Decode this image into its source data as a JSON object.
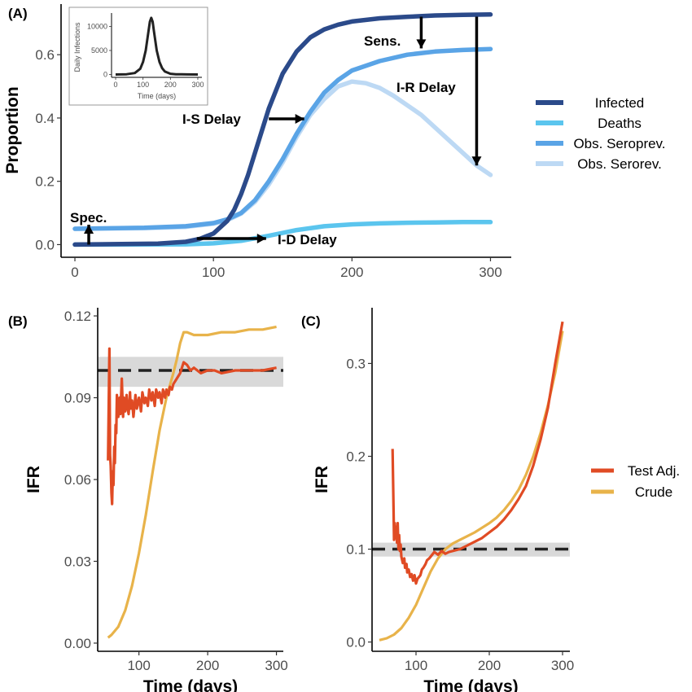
{
  "colors": {
    "infected": "#2b4a8a",
    "deaths": "#5bc5ee",
    "seroprev": "#5aa4e6",
    "serorev": "#bdd9f4",
    "test_adj": "#e04b24",
    "crude": "#e8b34a",
    "truth_line": "#222222",
    "band": "#d9d9d9"
  },
  "chart_data": [
    {
      "panel": "(A)",
      "type": "line",
      "ylabel": "Proportion",
      "xlabel": "",
      "xlim": [
        -10,
        315
      ],
      "ylim": [
        -0.04,
        0.76
      ],
      "xticks": [
        0,
        100,
        200,
        300
      ],
      "yticks": [
        0.0,
        0.2,
        0.4,
        0.6
      ],
      "ytick_labels": [
        "0.0",
        "0.2",
        "0.4",
        "0.6"
      ],
      "legend_position": "right",
      "series": [
        {
          "name": "Infected",
          "key": "infected",
          "x": [
            0,
            60,
            80,
            90,
            100,
            110,
            115,
            120,
            125,
            130,
            135,
            140,
            150,
            160,
            170,
            180,
            190,
            200,
            220,
            240,
            260,
            280,
            300
          ],
          "y": [
            0.0,
            0.003,
            0.009,
            0.018,
            0.035,
            0.075,
            0.11,
            0.16,
            0.22,
            0.29,
            0.36,
            0.43,
            0.54,
            0.61,
            0.655,
            0.68,
            0.695,
            0.705,
            0.715,
            0.72,
            0.724,
            0.726,
            0.727
          ]
        },
        {
          "name": "Deaths",
          "key": "deaths",
          "x": [
            0,
            80,
            100,
            120,
            140,
            160,
            180,
            200,
            220,
            240,
            260,
            280,
            300
          ],
          "y": [
            0.0,
            0.001,
            0.004,
            0.012,
            0.028,
            0.046,
            0.058,
            0.064,
            0.067,
            0.069,
            0.07,
            0.071,
            0.071
          ]
        },
        {
          "name": "Obs. Seroprev.",
          "key": "seroprev",
          "x": [
            0,
            50,
            80,
            100,
            110,
            120,
            130,
            140,
            150,
            160,
            170,
            180,
            190,
            200,
            220,
            240,
            260,
            280,
            300
          ],
          "y": [
            0.05,
            0.053,
            0.058,
            0.068,
            0.08,
            0.1,
            0.14,
            0.2,
            0.27,
            0.35,
            0.42,
            0.48,
            0.52,
            0.55,
            0.58,
            0.6,
            0.61,
            0.615,
            0.618
          ]
        },
        {
          "name": "Obs. Serorev.",
          "key": "serorev",
          "x": [
            0,
            50,
            80,
            100,
            110,
            120,
            130,
            140,
            150,
            160,
            170,
            180,
            190,
            200,
            210,
            220,
            230,
            240,
            250,
            260,
            270,
            280,
            290,
            300
          ],
          "y": [
            0.05,
            0.052,
            0.056,
            0.066,
            0.077,
            0.098,
            0.135,
            0.19,
            0.26,
            0.34,
            0.41,
            0.46,
            0.5,
            0.515,
            0.51,
            0.495,
            0.47,
            0.44,
            0.41,
            0.37,
            0.33,
            0.29,
            0.25,
            0.22
          ]
        }
      ],
      "annotations": [
        {
          "text": "Spec.",
          "arrow": {
            "x": 10,
            "y_from": 0.0,
            "y_to": 0.05,
            "dir": "up"
          }
        },
        {
          "text": "I-D Delay",
          "arrow": {
            "y": 0.02,
            "x_from": 88,
            "x_to": 138,
            "dir": "right"
          }
        },
        {
          "text": "I-S Delay",
          "arrow": {
            "y": 0.4,
            "x_from": 140,
            "x_to": 162,
            "dir": "right"
          }
        },
        {
          "text": "Sens.",
          "arrow": {
            "x": 250,
            "y_from": 0.72,
            "y_to": 0.62,
            "dir": "down"
          }
        },
        {
          "text": "I-R Delay",
          "arrow": {
            "x": 290,
            "y_from": 0.72,
            "y_to": 0.25,
            "dir": "down"
          }
        }
      ],
      "inset": {
        "type": "line",
        "xlabel": "Time (days)",
        "ylabel": "Daily Infections",
        "xticks": [
          0,
          100,
          200,
          300
        ],
        "yticks": [
          0,
          5000,
          10000
        ],
        "xlim": [
          -15,
          315
        ],
        "ylim": [
          -600,
          12800
        ],
        "x": [
          0,
          40,
          70,
          90,
          100,
          110,
          120,
          125,
          130,
          135,
          140,
          150,
          160,
          170,
          180,
          200,
          220,
          240,
          260,
          300
        ],
        "y": [
          0,
          50,
          300,
          1200,
          2600,
          5000,
          9000,
          11000,
          11800,
          11000,
          9000,
          5000,
          2600,
          1300,
          600,
          150,
          50,
          20,
          5,
          0
        ]
      }
    },
    {
      "panel": "(B)",
      "type": "line",
      "xlabel": "Time (days)",
      "ylabel": "IFR",
      "xlim": [
        40,
        310
      ],
      "ylim": [
        -0.003,
        0.123
      ],
      "xticks": [
        100,
        200,
        300
      ],
      "yticks": [
        0.0,
        0.03,
        0.06,
        0.09,
        0.12
      ],
      "ytick_labels": [
        "0.00",
        "0.03",
        "0.06",
        "0.09",
        "0.12"
      ],
      "reference_line": 0.1,
      "band": [
        0.094,
        0.105
      ],
      "series": [
        {
          "name": "Test Adj.",
          "key": "test_adj",
          "x": [
            55,
            57,
            58,
            59,
            60,
            61,
            62,
            63,
            64,
            65,
            66,
            67,
            68,
            70,
            72,
            73,
            75,
            77,
            78,
            80,
            82,
            83,
            85,
            87,
            88,
            90,
            92,
            95,
            97,
            100,
            103,
            105,
            108,
            110,
            113,
            115,
            118,
            120,
            123,
            125,
            128,
            130,
            133,
            135,
            138,
            140,
            143,
            145,
            148,
            150,
            155,
            160,
            165,
            170,
            175,
            180,
            190,
            200,
            210,
            220,
            240,
            260,
            280,
            300
          ],
          "y": [
            0.067,
            0.108,
            0.069,
            0.065,
            0.055,
            0.051,
            0.063,
            0.058,
            0.072,
            0.066,
            0.08,
            0.077,
            0.091,
            0.083,
            0.09,
            0.084,
            0.097,
            0.083,
            0.09,
            0.085,
            0.091,
            0.087,
            0.084,
            0.092,
            0.086,
            0.089,
            0.083,
            0.091,
            0.086,
            0.09,
            0.085,
            0.092,
            0.088,
            0.09,
            0.087,
            0.093,
            0.089,
            0.092,
            0.087,
            0.093,
            0.09,
            0.092,
            0.088,
            0.093,
            0.09,
            0.093,
            0.091,
            0.094,
            0.093,
            0.095,
            0.097,
            0.099,
            0.103,
            0.102,
            0.1,
            0.101,
            0.099,
            0.1,
            0.1,
            0.099,
            0.1,
            0.1,
            0.1,
            0.101
          ]
        },
        {
          "name": "Crude",
          "key": "crude",
          "x": [
            55,
            60,
            70,
            80,
            90,
            100,
            110,
            120,
            130,
            140,
            150,
            155,
            160,
            165,
            170,
            180,
            200,
            220,
            240,
            260,
            280,
            300
          ],
          "y": [
            0.002,
            0.003,
            0.006,
            0.012,
            0.021,
            0.033,
            0.047,
            0.063,
            0.078,
            0.09,
            0.099,
            0.104,
            0.11,
            0.114,
            0.114,
            0.113,
            0.113,
            0.114,
            0.114,
            0.115,
            0.115,
            0.116
          ]
        }
      ]
    },
    {
      "panel": "(C)",
      "type": "line",
      "xlabel": "Time (days)",
      "ylabel": "IFR",
      "xlim": [
        40,
        310
      ],
      "ylim": [
        -0.01,
        0.36
      ],
      "xticks": [
        100,
        200,
        300
      ],
      "yticks": [
        0.0,
        0.1,
        0.2,
        0.3
      ],
      "ytick_labels": [
        "0.0",
        "0.1",
        "0.2",
        "0.3"
      ],
      "reference_line": 0.1,
      "band": [
        0.092,
        0.107
      ],
      "legend_position": "right",
      "series": [
        {
          "name": "Test Adj.",
          "key": "test_adj",
          "x": [
            68,
            69,
            70,
            71,
            72,
            73,
            74,
            75,
            76,
            77,
            78,
            79,
            80,
            82,
            84,
            85,
            87,
            88,
            90,
            92,
            94,
            96,
            98,
            100,
            102,
            104,
            106,
            108,
            110,
            113,
            115,
            118,
            120,
            125,
            130,
            135,
            140,
            145,
            150,
            160,
            170,
            180,
            190,
            200,
            210,
            220,
            230,
            240,
            250,
            260,
            270,
            280,
            290,
            300
          ],
          "y": [
            0.208,
            0.16,
            0.11,
            0.128,
            0.112,
            0.124,
            0.107,
            0.128,
            0.1,
            0.115,
            0.098,
            0.105,
            0.092,
            0.085,
            0.09,
            0.08,
            0.084,
            0.075,
            0.078,
            0.07,
            0.073,
            0.066,
            0.072,
            0.063,
            0.068,
            0.07,
            0.072,
            0.078,
            0.08,
            0.084,
            0.088,
            0.09,
            0.092,
            0.097,
            0.094,
            0.098,
            0.095,
            0.097,
            0.098,
            0.1,
            0.104,
            0.108,
            0.112,
            0.118,
            0.124,
            0.132,
            0.142,
            0.154,
            0.168,
            0.19,
            0.218,
            0.252,
            0.3,
            0.345
          ]
        },
        {
          "name": "Crude",
          "key": "crude",
          "x": [
            50,
            60,
            70,
            80,
            90,
            100,
            110,
            120,
            130,
            140,
            150,
            160,
            170,
            180,
            190,
            200,
            210,
            220,
            230,
            240,
            250,
            260,
            270,
            280,
            290,
            300
          ],
          "y": [
            0.002,
            0.004,
            0.008,
            0.015,
            0.026,
            0.04,
            0.058,
            0.076,
            0.09,
            0.1,
            0.106,
            0.11,
            0.114,
            0.118,
            0.123,
            0.128,
            0.134,
            0.142,
            0.152,
            0.164,
            0.18,
            0.2,
            0.225,
            0.255,
            0.29,
            0.335
          ]
        }
      ]
    }
  ]
}
